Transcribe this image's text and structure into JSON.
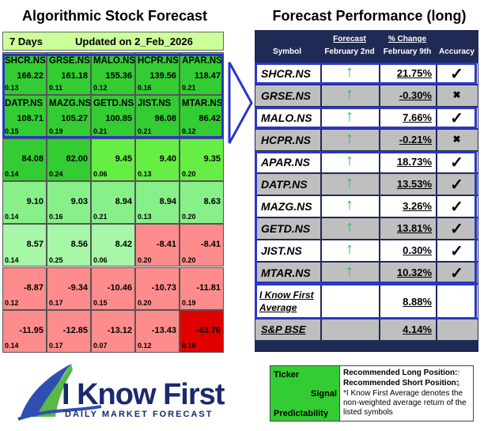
{
  "left": {
    "title": "Algorithmic Stock Forecast",
    "period": "7 Days",
    "updated": "Updated on 2_Feb_2026",
    "rows": [
      [
        {
          "symbol": "SHCR.NS",
          "signal": "166.22",
          "predictability": "0.13"
        },
        {
          "symbol": "GRSE.NS",
          "signal": "161.18",
          "predictability": "0.11"
        },
        {
          "symbol": "MALO.NS",
          "signal": "155.36",
          "predictability": "0.12"
        },
        {
          "symbol": "HCPR.NS",
          "signal": "139.56",
          "predictability": "0.16"
        },
        {
          "symbol": "APAR.NS",
          "signal": "118.47",
          "predictability": "0.21"
        }
      ],
      [
        {
          "symbol": "DATP.NS",
          "signal": "108.71",
          "predictability": "0.15"
        },
        {
          "symbol": "MAZG.NS",
          "signal": "105.27",
          "predictability": "0.19"
        },
        {
          "symbol": "GETD.NS",
          "signal": "100.85",
          "predictability": "0.21"
        },
        {
          "symbol": "JIST.NS",
          "signal": "96.08",
          "predictability": "0.21"
        },
        {
          "symbol": "MTAR.NS",
          "signal": "86.42",
          "predictability": "0.12"
        }
      ],
      [
        {
          "signal": "84.08",
          "predictability": "0.14"
        },
        {
          "signal": "82.00",
          "predictability": "0.24"
        },
        {
          "signal": "9.45",
          "predictability": "0.06"
        },
        {
          "signal": "9.40",
          "predictability": "0.13"
        },
        {
          "signal": "9.35",
          "predictability": "0.20"
        }
      ],
      [
        {
          "signal": "9.10",
          "predictability": "0.14"
        },
        {
          "signal": "9.03",
          "predictability": "0.16"
        },
        {
          "signal": "8.94",
          "predictability": "0.21"
        },
        {
          "signal": "8.94",
          "predictability": "0.13"
        },
        {
          "signal": "8.63",
          "predictability": "0.20"
        }
      ],
      [
        {
          "signal": "8.57",
          "predictability": "0.14"
        },
        {
          "signal": "8.56",
          "predictability": "0.25"
        },
        {
          "signal": "8.42",
          "predictability": "0.06"
        },
        {
          "signal": "-8.41",
          "predictability": "0.20"
        },
        {
          "signal": "-8.41",
          "predictability": "0.20"
        }
      ],
      [
        {
          "signal": "-8.87",
          "predictability": "0.12"
        },
        {
          "signal": "-9.34",
          "predictability": "0.17"
        },
        {
          "signal": "-10.46",
          "predictability": "0.15"
        },
        {
          "signal": "-10.73",
          "predictability": "0.20"
        },
        {
          "signal": "-11.81",
          "predictability": "0.19"
        }
      ],
      [
        {
          "signal": "-11.95",
          "predictability": "0.14"
        },
        {
          "signal": "-12.85",
          "predictability": "0.17"
        },
        {
          "signal": "-13.12",
          "predictability": "0.07"
        },
        {
          "signal": "-13.43",
          "predictability": "0.12"
        },
        {
          "signal": "-63.76",
          "predictability": "0.10"
        }
      ]
    ]
  },
  "right": {
    "title": "Forecast Performance (long)",
    "headers": {
      "symbol": "Symbol",
      "forecast": "Forecast",
      "forecast_date": "February 2nd",
      "change": "% Change",
      "change_date": "February 9th",
      "accuracy": "Accuracy"
    },
    "rows": [
      {
        "symbol": "SHCR.NS",
        "forecast": "↑",
        "change": "21.75%",
        "accuracy": "✓"
      },
      {
        "symbol": "GRSE.NS",
        "forecast": "↑",
        "change": "-0.30%",
        "accuracy": "✖"
      },
      {
        "symbol": "MALO.NS",
        "forecast": "↑",
        "change": "7.66%",
        "accuracy": "✓"
      },
      {
        "symbol": "HCPR.NS",
        "forecast": "↑",
        "change": "-0.21%",
        "accuracy": "✖"
      },
      {
        "symbol": "APAR.NS",
        "forecast": "↑",
        "change": "18.73%",
        "accuracy": "✓"
      },
      {
        "symbol": "DATP.NS",
        "forecast": "↑",
        "change": "13.53%",
        "accuracy": "✓"
      },
      {
        "symbol": "MAZG.NS",
        "forecast": "↑",
        "change": "3.26%",
        "accuracy": "✓"
      },
      {
        "symbol": "GETD.NS",
        "forecast": "↑",
        "change": "13.81%",
        "accuracy": "✓"
      },
      {
        "symbol": "JIST.NS",
        "forecast": "↑",
        "change": "0.30%",
        "accuracy": "✓"
      },
      {
        "symbol": "MTAR.NS",
        "forecast": "↑",
        "change": "10.32%",
        "accuracy": "✓"
      }
    ],
    "average": {
      "label": "I Know First Average",
      "change": "8.88%"
    },
    "benchmark": {
      "label": "S&P BSE",
      "change": "4.14%"
    }
  },
  "logo": {
    "name": "I Know First",
    "tagline": "DAILY MARKET FORECAST"
  },
  "legend": {
    "ticker": "Ticker",
    "signal": "Signal",
    "predictability": "Predictability",
    "long": "Recommended Long Position:",
    "long_icon": "↑",
    "short": "Recommended Short Position:",
    "short_icon": "↓",
    "note": "*I Know First Average denotes the non-weighted average return of the listed symbols"
  }
}
